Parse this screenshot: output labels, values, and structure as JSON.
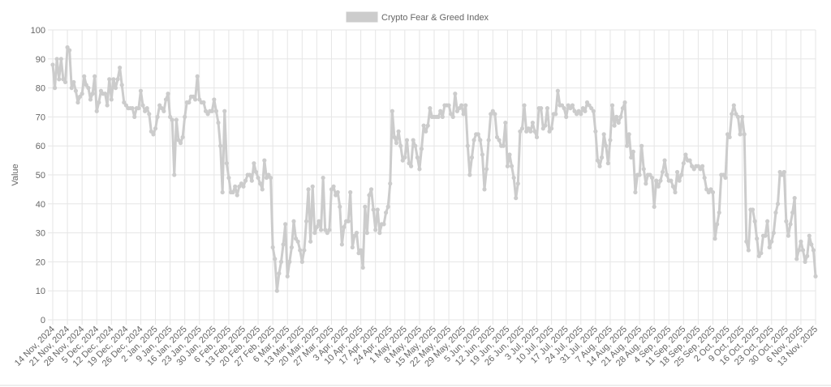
{
  "chart_data": {
    "type": "line",
    "y_label": "Value",
    "ylim": [
      0,
      100
    ],
    "yticks": [
      0,
      10,
      20,
      30,
      40,
      50,
      60,
      70,
      80,
      90,
      100
    ],
    "grid": true,
    "legend": "top",
    "categories": [
      "14 Nov, 2024",
      null,
      null,
      null,
      null,
      null,
      null,
      "21 Nov, 2024",
      null,
      null,
      null,
      null,
      null,
      null,
      "28 Nov, 2024",
      null,
      null,
      null,
      null,
      null,
      null,
      "5 Dec, 2024",
      null,
      null,
      null,
      null,
      null,
      null,
      "12 Dec, 2024",
      null,
      null,
      null,
      null,
      null,
      null,
      "19 Dec, 2024",
      null,
      null,
      null,
      null,
      null,
      null,
      "26 Dec, 2024",
      null,
      null,
      null,
      null,
      null,
      null,
      "2 Jan, 2025",
      null,
      null,
      null,
      null,
      null,
      null,
      "9 Jan, 2025",
      null,
      null,
      null,
      null,
      null,
      null,
      "16 Jan, 2025",
      null,
      null,
      null,
      null,
      null,
      null,
      "23 Jan, 2025",
      null,
      null,
      null,
      null,
      null,
      null,
      "30 Jan, 2025",
      null,
      null,
      null,
      null,
      null,
      null,
      "6 Feb, 2025",
      null,
      null,
      null,
      null,
      null,
      null,
      "13 Feb, 2025",
      null,
      null,
      null,
      null,
      null,
      null,
      "20 Feb, 2025",
      null,
      null,
      null,
      null,
      null,
      null,
      "27 Feb, 2025",
      null,
      null,
      null,
      null,
      null,
      null,
      "6 Mar, 2025",
      null,
      null,
      null,
      null,
      null,
      null,
      "13 Mar, 2025",
      null,
      null,
      null,
      null,
      null,
      null,
      "20 Mar, 2025",
      null,
      null,
      null,
      null,
      null,
      null,
      "27 Mar, 2025",
      null,
      null,
      null,
      null,
      null,
      null,
      "3 Apr, 2025",
      null,
      null,
      null,
      null,
      null,
      null,
      "10 Apr, 2025",
      null,
      null,
      null,
      null,
      null,
      null,
      "17 Apr, 2025",
      null,
      null,
      null,
      null,
      null,
      null,
      "24 Apr, 2025",
      null,
      null,
      null,
      null,
      null,
      null,
      "1 May, 2025",
      null,
      null,
      null,
      null,
      null,
      null,
      "8 May, 2025",
      null,
      null,
      null,
      null,
      null,
      null,
      "15 May, 2025",
      null,
      null,
      null,
      null,
      null,
      null,
      "22 May, 2025",
      null,
      null,
      null,
      null,
      null,
      null,
      "29 May, 2025",
      null,
      null,
      null,
      null,
      null,
      null,
      "5 Jun, 2025",
      null,
      null,
      null,
      null,
      null,
      null,
      "12 Jun, 2025",
      null,
      null,
      null,
      null,
      null,
      null,
      "19 Jun, 2025",
      null,
      null,
      null,
      null,
      null,
      null,
      "26 Jun, 2025",
      null,
      null,
      null,
      null,
      null,
      null,
      "3 Jul, 2025",
      null,
      null,
      null,
      null,
      null,
      null,
      "10 Jul, 2025",
      null,
      null,
      null,
      null,
      null,
      null,
      "17 Jul, 2025",
      null,
      null,
      null,
      null,
      null,
      null,
      "24 Jul, 2025",
      null,
      null,
      null,
      null,
      null,
      null,
      "31 Jul, 2025",
      null,
      null,
      null,
      null,
      null,
      null,
      "7 Aug, 2025",
      null,
      null,
      null,
      null,
      null,
      null,
      "14 Aug, 2025",
      null,
      null,
      null,
      null,
      null,
      null,
      "21 Aug, 2025",
      null,
      null,
      null,
      null,
      null,
      null,
      "28 Aug, 2025",
      null,
      null,
      null,
      null,
      null,
      null,
      "4 Sep, 2025",
      null,
      null,
      null,
      null,
      null,
      null,
      "11 Sep, 2025",
      null,
      null,
      null,
      null,
      null,
      null,
      "18 Sep, 2025",
      null,
      null,
      null,
      null,
      null,
      null,
      "25 Sep, 2025",
      null,
      null,
      null,
      null,
      null,
      null,
      "2 Oct, 2025",
      null,
      null,
      null,
      null,
      null,
      null,
      "9 Oct, 2025",
      null,
      null,
      null,
      null,
      null,
      null,
      "16 Oct, 2025",
      null,
      null,
      null,
      null,
      null,
      null,
      "23 Oct, 2025",
      null,
      null,
      null,
      null,
      null,
      null,
      "30 Oct, 2025",
      null,
      null,
      null,
      null,
      null,
      null,
      "6 Nov, 2025",
      null,
      null,
      null,
      null,
      null,
      null,
      "13 Nov, 2025"
    ],
    "series": [
      {
        "name": "Crypto Fear & Greed Index",
        "color": "#cccccc",
        "values": [
          88,
          80,
          90,
          83,
          90,
          83,
          82,
          94,
          93,
          80,
          82,
          79,
          75,
          77,
          78,
          84,
          81,
          80,
          76,
          78,
          84,
          72,
          75,
          79,
          78,
          78,
          74,
          83,
          76,
          83,
          80,
          83,
          87,
          81,
          75,
          74,
          73,
          73,
          73,
          70,
          73,
          73,
          79,
          74,
          72,
          73,
          71,
          65,
          64,
          66,
          70,
          74,
          73,
          72,
          76,
          78,
          70,
          69,
          50,
          69,
          62,
          61,
          63,
          70,
          75,
          75,
          77,
          77,
          76,
          84,
          76,
          75,
          75,
          72,
          71,
          72,
          72,
          76,
          72,
          68,
          60,
          44,
          72,
          54,
          49,
          44,
          44,
          46,
          43,
          46,
          47,
          46,
          48,
          50,
          50,
          48,
          54,
          51,
          49,
          47,
          45,
          55,
          49,
          50,
          49,
          25,
          21,
          10,
          16,
          20,
          26,
          33,
          15,
          20,
          25,
          34,
          28,
          27,
          24,
          20,
          24,
          34,
          45,
          27,
          46,
          30,
          32,
          34,
          31,
          49,
          31,
          30,
          31,
          45,
          46,
          43,
          44,
          39,
          26,
          32,
          34,
          34,
          44,
          25,
          29,
          30,
          23,
          24,
          18,
          39,
          30,
          43,
          45,
          38,
          31,
          38,
          30,
          33,
          33,
          37,
          39,
          47,
          72,
          63,
          61,
          65,
          60,
          55,
          56,
          62,
          54,
          53,
          62,
          60,
          56,
          52,
          59,
          67,
          65,
          67,
          73,
          70,
          70,
          70,
          70,
          72,
          70,
          74,
          74,
          74,
          71,
          70,
          78,
          72,
          73,
          74,
          71,
          74,
          60,
          50,
          56,
          62,
          64,
          64,
          62,
          57,
          45,
          52,
          62,
          71,
          72,
          71,
          63,
          62,
          60,
          60,
          68,
          53,
          57,
          53,
          49,
          42,
          47,
          65,
          66,
          74,
          65,
          66,
          65,
          68,
          65,
          63,
          73,
          73,
          66,
          67,
          73,
          65,
          66,
          71,
          71,
          79,
          74,
          74,
          73,
          70,
          74,
          73,
          74,
          72,
          71,
          72,
          71,
          73,
          72,
          75,
          74,
          73,
          72,
          65,
          55,
          53,
          56,
          64,
          60,
          54,
          62,
          74,
          67,
          70,
          68,
          70,
          73,
          75,
          60,
          64,
          56,
          58,
          44,
          50,
          50,
          60,
          52,
          47,
          50,
          50,
          49,
          39,
          48,
          46,
          48,
          51,
          55,
          50,
          48,
          48,
          46,
          44,
          51,
          48,
          50,
          54,
          57,
          55,
          55,
          53,
          52,
          53,
          53,
          52,
          53,
          49,
          45,
          44,
          45,
          44,
          28,
          33,
          37,
          50,
          50,
          49,
          64,
          63,
          71,
          74,
          71,
          70,
          64,
          70,
          64,
          27,
          24,
          38,
          38,
          34,
          28,
          22,
          23,
          29,
          29,
          34,
          25,
          27,
          30,
          37,
          40,
          51,
          50,
          51,
          34,
          29,
          33,
          37,
          42,
          21,
          24,
          27,
          24,
          20,
          22,
          29,
          26,
          24,
          15
        ]
      }
    ]
  }
}
